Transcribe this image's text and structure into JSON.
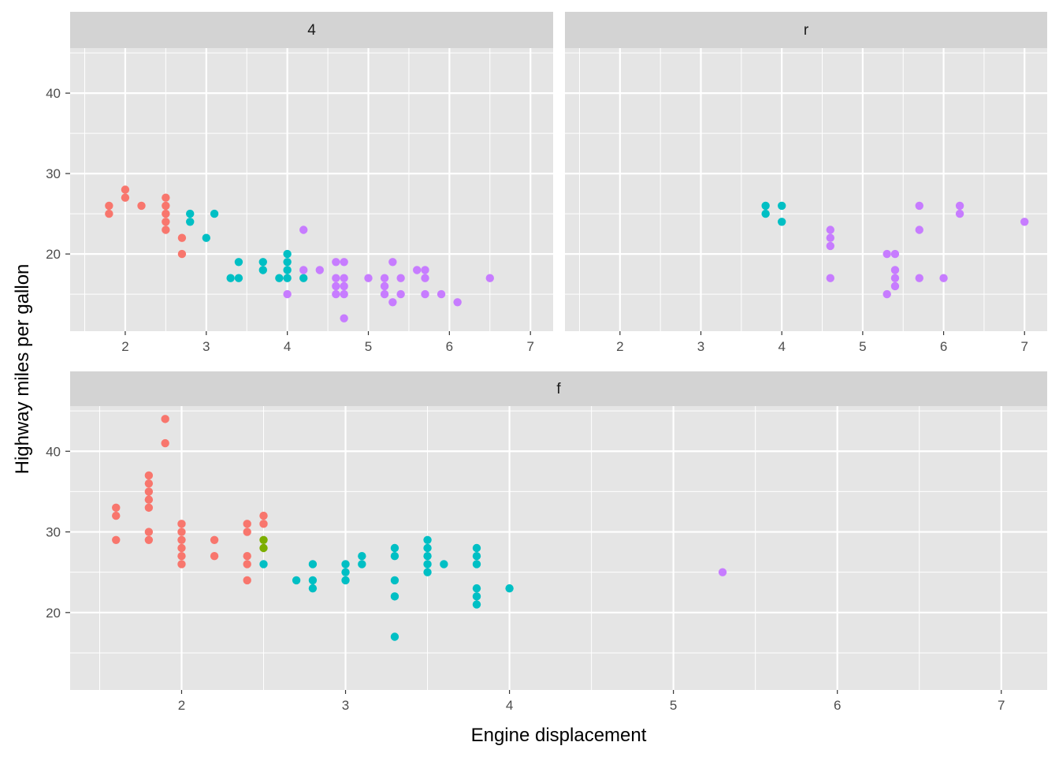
{
  "chart_data": {
    "type": "scatter",
    "xlabel": "Engine displacement",
    "ylabel": "Highway miles per gallon",
    "colors": {
      "red": "#F8766D",
      "green": "#7CAE00",
      "teal": "#00BFC4",
      "purple": "#C77CFF",
      "panel_bg": "#E5E5E5",
      "strip_bg": "#D3D3D3",
      "grid": "#FFFFFF"
    },
    "panels": [
      {
        "strip": "4",
        "xlim": [
          1.32,
          7.28
        ],
        "ylim": [
          10.4,
          45.6
        ],
        "x_ticks": [
          2,
          3,
          4,
          5,
          6,
          7
        ],
        "y_ticks": [
          20,
          30,
          40
        ],
        "points": [
          {
            "x": 1.8,
            "y": 26,
            "c": "red"
          },
          {
            "x": 1.8,
            "y": 25,
            "c": "red"
          },
          {
            "x": 2.0,
            "y": 28,
            "c": "red"
          },
          {
            "x": 2.0,
            "y": 27,
            "c": "red"
          },
          {
            "x": 2.2,
            "y": 26,
            "c": "red"
          },
          {
            "x": 2.5,
            "y": 27,
            "c": "red"
          },
          {
            "x": 2.5,
            "y": 26,
            "c": "red"
          },
          {
            "x": 2.5,
            "y": 25,
            "c": "red"
          },
          {
            "x": 2.5,
            "y": 24,
            "c": "red"
          },
          {
            "x": 2.5,
            "y": 23,
            "c": "red"
          },
          {
            "x": 2.7,
            "y": 22,
            "c": "red"
          },
          {
            "x": 2.7,
            "y": 20,
            "c": "red"
          },
          {
            "x": 2.8,
            "y": 25,
            "c": "teal"
          },
          {
            "x": 2.8,
            "y": 24,
            "c": "teal"
          },
          {
            "x": 3.0,
            "y": 22,
            "c": "teal"
          },
          {
            "x": 3.1,
            "y": 25,
            "c": "teal"
          },
          {
            "x": 3.3,
            "y": 17,
            "c": "teal"
          },
          {
            "x": 3.4,
            "y": 17,
            "c": "teal"
          },
          {
            "x": 3.4,
            "y": 19,
            "c": "teal"
          },
          {
            "x": 3.7,
            "y": 19,
            "c": "teal"
          },
          {
            "x": 3.7,
            "y": 18,
            "c": "teal"
          },
          {
            "x": 3.9,
            "y": 17,
            "c": "teal"
          },
          {
            "x": 4.0,
            "y": 20,
            "c": "teal"
          },
          {
            "x": 4.0,
            "y": 19,
            "c": "teal"
          },
          {
            "x": 4.0,
            "y": 18,
            "c": "teal"
          },
          {
            "x": 4.0,
            "y": 17,
            "c": "teal"
          },
          {
            "x": 4.2,
            "y": 17,
            "c": "teal"
          },
          {
            "x": 4.0,
            "y": 15,
            "c": "purple"
          },
          {
            "x": 4.2,
            "y": 23,
            "c": "purple"
          },
          {
            "x": 4.2,
            "y": 18,
            "c": "purple"
          },
          {
            "x": 4.4,
            "y": 18,
            "c": "purple"
          },
          {
            "x": 4.6,
            "y": 19,
            "c": "purple"
          },
          {
            "x": 4.6,
            "y": 17,
            "c": "purple"
          },
          {
            "x": 4.6,
            "y": 16,
            "c": "purple"
          },
          {
            "x": 4.6,
            "y": 15,
            "c": "purple"
          },
          {
            "x": 4.7,
            "y": 19,
            "c": "purple"
          },
          {
            "x": 4.7,
            "y": 17,
            "c": "purple"
          },
          {
            "x": 4.7,
            "y": 16,
            "c": "purple"
          },
          {
            "x": 4.7,
            "y": 15,
            "c": "purple"
          },
          {
            "x": 4.7,
            "y": 12,
            "c": "purple"
          },
          {
            "x": 5.0,
            "y": 17,
            "c": "purple"
          },
          {
            "x": 5.2,
            "y": 17,
            "c": "purple"
          },
          {
            "x": 5.2,
            "y": 16,
            "c": "purple"
          },
          {
            "x": 5.2,
            "y": 15,
            "c": "purple"
          },
          {
            "x": 5.3,
            "y": 19,
            "c": "purple"
          },
          {
            "x": 5.3,
            "y": 14,
            "c": "purple"
          },
          {
            "x": 5.4,
            "y": 17,
            "c": "purple"
          },
          {
            "x": 5.4,
            "y": 15,
            "c": "purple"
          },
          {
            "x": 5.6,
            "y": 18,
            "c": "purple"
          },
          {
            "x": 5.7,
            "y": 18,
            "c": "purple"
          },
          {
            "x": 5.7,
            "y": 17,
            "c": "purple"
          },
          {
            "x": 5.7,
            "y": 15,
            "c": "purple"
          },
          {
            "x": 5.9,
            "y": 15,
            "c": "purple"
          },
          {
            "x": 6.1,
            "y": 14,
            "c": "purple"
          },
          {
            "x": 6.5,
            "y": 17,
            "c": "purple"
          }
        ]
      },
      {
        "strip": "r",
        "xlim": [
          1.32,
          7.28
        ],
        "ylim": [
          10.4,
          45.6
        ],
        "x_ticks": [
          2,
          3,
          4,
          5,
          6,
          7
        ],
        "y_ticks": [
          20,
          30,
          40
        ],
        "points": [
          {
            "x": 3.8,
            "y": 26,
            "c": "teal"
          },
          {
            "x": 3.8,
            "y": 25,
            "c": "teal"
          },
          {
            "x": 4.0,
            "y": 26,
            "c": "teal"
          },
          {
            "x": 4.0,
            "y": 24,
            "c": "teal"
          },
          {
            "x": 4.6,
            "y": 23,
            "c": "purple"
          },
          {
            "x": 4.6,
            "y": 22,
            "c": "purple"
          },
          {
            "x": 4.6,
            "y": 21,
            "c": "purple"
          },
          {
            "x": 4.6,
            "y": 17,
            "c": "purple"
          },
          {
            "x": 5.3,
            "y": 20,
            "c": "purple"
          },
          {
            "x": 5.3,
            "y": 15,
            "c": "purple"
          },
          {
            "x": 5.4,
            "y": 20,
            "c": "purple"
          },
          {
            "x": 5.4,
            "y": 18,
            "c": "purple"
          },
          {
            "x": 5.4,
            "y": 17,
            "c": "purple"
          },
          {
            "x": 5.4,
            "y": 16,
            "c": "purple"
          },
          {
            "x": 5.7,
            "y": 26,
            "c": "purple"
          },
          {
            "x": 5.7,
            "y": 23,
            "c": "purple"
          },
          {
            "x": 5.7,
            "y": 17,
            "c": "purple"
          },
          {
            "x": 6.0,
            "y": 17,
            "c": "purple"
          },
          {
            "x": 6.2,
            "y": 26,
            "c": "purple"
          },
          {
            "x": 6.2,
            "y": 25,
            "c": "purple"
          },
          {
            "x": 7.0,
            "y": 24,
            "c": "purple"
          }
        ]
      },
      {
        "strip": "f",
        "xlim": [
          1.32,
          7.28
        ],
        "ylim": [
          10.4,
          45.6
        ],
        "x_ticks": [
          2,
          3,
          4,
          5,
          6,
          7
        ],
        "y_ticks": [
          20,
          30,
          40
        ],
        "points": [
          {
            "x": 1.6,
            "y": 33,
            "c": "red"
          },
          {
            "x": 1.6,
            "y": 32,
            "c": "red"
          },
          {
            "x": 1.6,
            "y": 29,
            "c": "red"
          },
          {
            "x": 1.8,
            "y": 37,
            "c": "red"
          },
          {
            "x": 1.8,
            "y": 36,
            "c": "red"
          },
          {
            "x": 1.8,
            "y": 35,
            "c": "red"
          },
          {
            "x": 1.8,
            "y": 34,
            "c": "red"
          },
          {
            "x": 1.8,
            "y": 33,
            "c": "red"
          },
          {
            "x": 1.8,
            "y": 30,
            "c": "red"
          },
          {
            "x": 1.8,
            "y": 29,
            "c": "red"
          },
          {
            "x": 1.9,
            "y": 44,
            "c": "red"
          },
          {
            "x": 1.9,
            "y": 41,
            "c": "red"
          },
          {
            "x": 2.0,
            "y": 31,
            "c": "red"
          },
          {
            "x": 2.0,
            "y": 30,
            "c": "red"
          },
          {
            "x": 2.0,
            "y": 29,
            "c": "red"
          },
          {
            "x": 2.0,
            "y": 28,
            "c": "red"
          },
          {
            "x": 2.0,
            "y": 27,
            "c": "red"
          },
          {
            "x": 2.0,
            "y": 26,
            "c": "red"
          },
          {
            "x": 2.2,
            "y": 29,
            "c": "red"
          },
          {
            "x": 2.2,
            "y": 27,
            "c": "red"
          },
          {
            "x": 2.4,
            "y": 31,
            "c": "red"
          },
          {
            "x": 2.4,
            "y": 30,
            "c": "red"
          },
          {
            "x": 2.4,
            "y": 27,
            "c": "red"
          },
          {
            "x": 2.4,
            "y": 26,
            "c": "red"
          },
          {
            "x": 2.4,
            "y": 24,
            "c": "red"
          },
          {
            "x": 2.5,
            "y": 32,
            "c": "red"
          },
          {
            "x": 2.5,
            "y": 31,
            "c": "red"
          },
          {
            "x": 2.5,
            "y": 29,
            "c": "green"
          },
          {
            "x": 2.5,
            "y": 28,
            "c": "green"
          },
          {
            "x": 2.5,
            "y": 26,
            "c": "teal"
          },
          {
            "x": 2.7,
            "y": 24,
            "c": "teal"
          },
          {
            "x": 2.8,
            "y": 26,
            "c": "teal"
          },
          {
            "x": 2.8,
            "y": 24,
            "c": "teal"
          },
          {
            "x": 2.8,
            "y": 23,
            "c": "teal"
          },
          {
            "x": 3.0,
            "y": 26,
            "c": "teal"
          },
          {
            "x": 3.0,
            "y": 25,
            "c": "teal"
          },
          {
            "x": 3.0,
            "y": 24,
            "c": "teal"
          },
          {
            "x": 3.1,
            "y": 27,
            "c": "teal"
          },
          {
            "x": 3.1,
            "y": 26,
            "c": "teal"
          },
          {
            "x": 3.3,
            "y": 28,
            "c": "teal"
          },
          {
            "x": 3.3,
            "y": 27,
            "c": "teal"
          },
          {
            "x": 3.3,
            "y": 24,
            "c": "teal"
          },
          {
            "x": 3.3,
            "y": 22,
            "c": "teal"
          },
          {
            "x": 3.3,
            "y": 17,
            "c": "teal"
          },
          {
            "x": 3.5,
            "y": 29,
            "c": "teal"
          },
          {
            "x": 3.5,
            "y": 28,
            "c": "teal"
          },
          {
            "x": 3.5,
            "y": 27,
            "c": "teal"
          },
          {
            "x": 3.5,
            "y": 26,
            "c": "teal"
          },
          {
            "x": 3.5,
            "y": 25,
            "c": "teal"
          },
          {
            "x": 3.6,
            "y": 26,
            "c": "teal"
          },
          {
            "x": 3.8,
            "y": 28,
            "c": "teal"
          },
          {
            "x": 3.8,
            "y": 27,
            "c": "teal"
          },
          {
            "x": 3.8,
            "y": 26,
            "c": "teal"
          },
          {
            "x": 3.8,
            "y": 23,
            "c": "teal"
          },
          {
            "x": 3.8,
            "y": 22,
            "c": "teal"
          },
          {
            "x": 3.8,
            "y": 21,
            "c": "teal"
          },
          {
            "x": 4.0,
            "y": 23,
            "c": "teal"
          },
          {
            "x": 5.3,
            "y": 25,
            "c": "purple"
          }
        ]
      }
    ]
  }
}
